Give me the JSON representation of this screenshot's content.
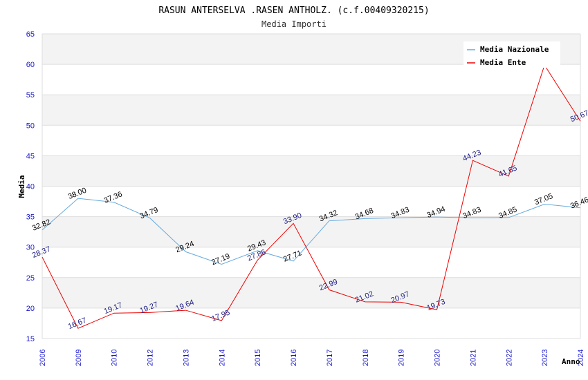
{
  "chart_data": {
    "type": "line",
    "title": "RASUN ANTERSELVA .RASEN ANTHOLZ. (c.f.00409320215)",
    "subtitle": "Media Importi",
    "xlabel": "Anno",
    "ylabel": "Media",
    "ylim": [
      15,
      65
    ],
    "yticks": [
      "15",
      "20",
      "25",
      "30",
      "35",
      "40",
      "45",
      "50",
      "55",
      "60",
      "65"
    ],
    "categories": [
      "2006",
      "2009",
      "2010",
      "2012",
      "2013",
      "2014",
      "2015",
      "2016",
      "2017",
      "2018",
      "2019",
      "2020",
      "2021",
      "2022",
      "2023",
      "2024"
    ],
    "grid": true,
    "legend_position": "top-right",
    "series": [
      {
        "name": "Media Nazionale",
        "color": "#66aadd",
        "values": [
          32.82,
          38.0,
          37.36,
          34.79,
          29.24,
          27.19,
          29.43,
          27.71,
          34.32,
          34.68,
          34.83,
          34.94,
          34.83,
          34.85,
          37.05,
          36.46
        ],
        "labels": [
          "32.82",
          "38.00",
          "37.36",
          "34.79",
          "29.24",
          "27.19",
          "29.43",
          "27.71",
          "34.32",
          "34.68",
          "34.83",
          "34.94",
          "34.83",
          "34.85",
          "37.05",
          "36.46"
        ]
      },
      {
        "name": "Media Ente",
        "color": "#ee0000",
        "values": [
          28.37,
          16.67,
          19.17,
          19.27,
          19.64,
          17.95,
          27.86,
          33.9,
          22.99,
          21.02,
          20.97,
          19.73,
          44.23,
          41.65,
          59.87,
          50.67
        ],
        "labels": [
          "28.37",
          "16.67",
          "19.17",
          "19.27",
          "19.64",
          "17.95",
          "27.86",
          "33.90",
          "22.99",
          "21.02",
          "20.97",
          "19.73",
          "44.23",
          "41.65",
          "",
          "50.67"
        ]
      }
    ]
  }
}
